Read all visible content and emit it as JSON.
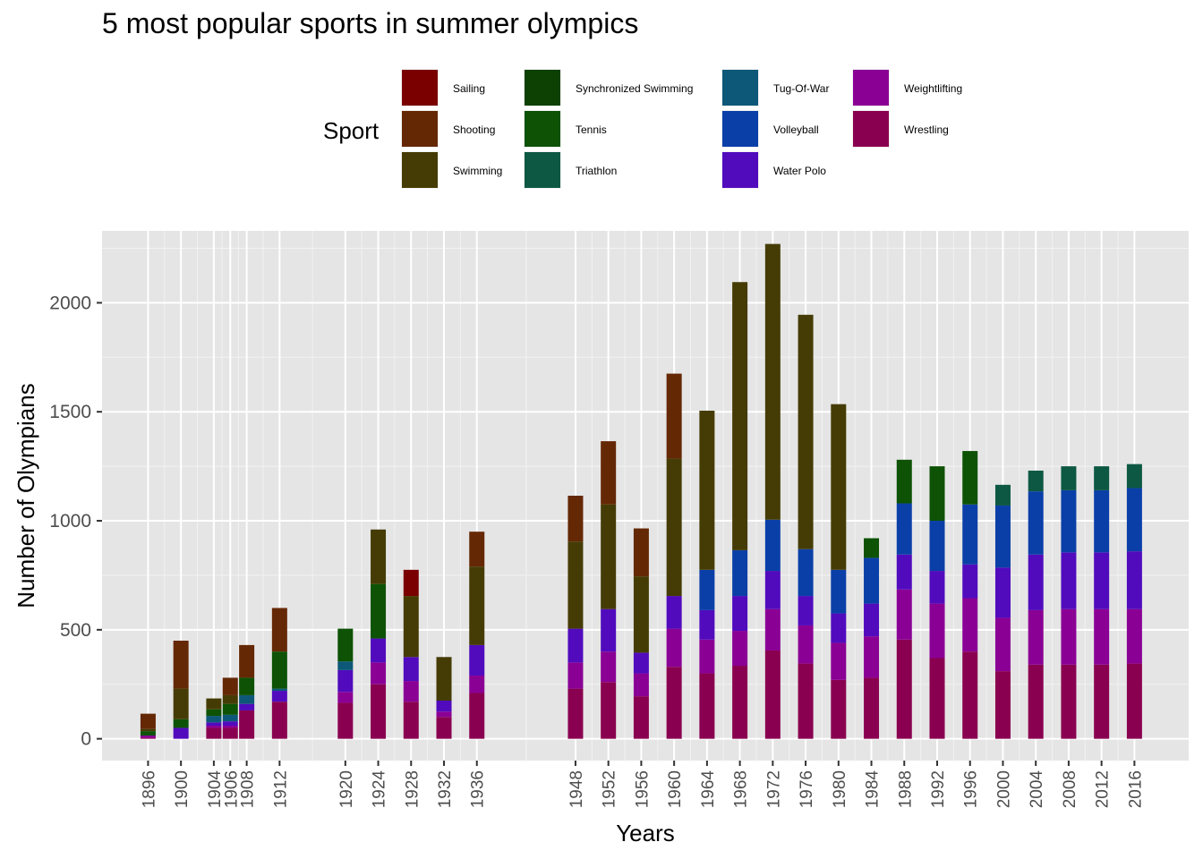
{
  "chart_data": {
    "type": "bar",
    "stacked": true,
    "title": "5 most popular sports in summer olympics",
    "xlabel": "Years",
    "ylabel": "Number of Olympians",
    "ylim": [
      -100,
      2330
    ],
    "xlim": [
      1890.4,
      2022.6
    ],
    "yticks": [
      0,
      500,
      1000,
      1500,
      2000
    ],
    "xticks": [
      1896,
      1900,
      1904,
      1906,
      1908,
      1912,
      1920,
      1924,
      1928,
      1932,
      1936,
      1948,
      1952,
      1956,
      1960,
      1964,
      1968,
      1972,
      1976,
      1980,
      1984,
      1988,
      1992,
      1996,
      2000,
      2004,
      2008,
      2012,
      2016
    ],
    "legend_title": "Sport",
    "legend_position": "top",
    "grid": true,
    "stack_order": [
      "Wrestling",
      "Weightlifting",
      "Water Polo",
      "Volleyball",
      "Tug-Of-War",
      "Triathlon",
      "Tennis",
      "Synchronized Swimming",
      "Swimming",
      "Shooting",
      "Sailing"
    ],
    "series": [
      {
        "name": "Sailing",
        "color": "#7a0000",
        "values": [
          [
            1928,
            120
          ]
        ]
      },
      {
        "name": "Shooting",
        "color": "#652805",
        "values": [
          [
            1896,
            70
          ],
          [
            1900,
            220
          ],
          [
            1904,
            0
          ],
          [
            1906,
            80
          ],
          [
            1908,
            150
          ],
          [
            1912,
            200
          ],
          [
            1920,
            0
          ],
          [
            1924,
            0
          ],
          [
            1928,
            0
          ],
          [
            1932,
            0
          ],
          [
            1936,
            160
          ],
          [
            1948,
            210
          ],
          [
            1952,
            290
          ],
          [
            1956,
            220
          ],
          [
            1960,
            390
          ]
        ]
      },
      {
        "name": "Swimming",
        "color": "#453c05",
        "values": [
          [
            1896,
            10
          ],
          [
            1900,
            140
          ],
          [
            1904,
            50
          ],
          [
            1906,
            40
          ],
          [
            1908,
            0
          ],
          [
            1912,
            0
          ],
          [
            1920,
            0
          ],
          [
            1924,
            250
          ],
          [
            1928,
            280
          ],
          [
            1932,
            200
          ],
          [
            1936,
            360
          ],
          [
            1948,
            400
          ],
          [
            1952,
            480
          ],
          [
            1956,
            350
          ],
          [
            1960,
            630
          ],
          [
            1964,
            730
          ],
          [
            1968,
            1230
          ],
          [
            1972,
            1265
          ],
          [
            1976,
            1075
          ],
          [
            1980,
            760
          ]
        ]
      },
      {
        "name": "Synchronized Swimming",
        "color": "#0d4103",
        "values": []
      },
      {
        "name": "Tennis",
        "color": "#0d5205",
        "values": [
          [
            1896,
            20
          ],
          [
            1900,
            40
          ],
          [
            1904,
            30
          ],
          [
            1906,
            50
          ],
          [
            1908,
            80
          ],
          [
            1912,
            170
          ],
          [
            1920,
            150
          ],
          [
            1924,
            250
          ],
          [
            1988,
            200
          ],
          [
            1992,
            250
          ],
          [
            1996,
            245
          ],
          [
            1984,
            90
          ]
        ]
      },
      {
        "name": "Triathlon",
        "color": "#0d5843",
        "values": [
          [
            2000,
            95
          ],
          [
            2004,
            95
          ],
          [
            2008,
            110
          ],
          [
            2012,
            110
          ],
          [
            2016,
            110
          ]
        ]
      },
      {
        "name": "Tug-Of-War",
        "color": "#0d5878",
        "values": [
          [
            1900,
            0
          ],
          [
            1904,
            30
          ],
          [
            1906,
            30
          ],
          [
            1908,
            40
          ],
          [
            1912,
            10
          ],
          [
            1920,
            40
          ]
        ]
      },
      {
        "name": "Volleyball",
        "color": "#0b3fa8",
        "values": [
          [
            1964,
            185
          ],
          [
            1968,
            210
          ],
          [
            1972,
            235
          ],
          [
            1976,
            215
          ],
          [
            1980,
            200
          ],
          [
            1984,
            210
          ],
          [
            1988,
            235
          ],
          [
            1992,
            230
          ],
          [
            1996,
            275
          ],
          [
            2000,
            285
          ],
          [
            2004,
            290
          ],
          [
            2008,
            285
          ],
          [
            2012,
            285
          ],
          [
            2016,
            290
          ]
        ]
      },
      {
        "name": "Water Polo",
        "color": "#510bbd",
        "values": [
          [
            1896,
            0
          ],
          [
            1900,
            50
          ],
          [
            1904,
            15
          ],
          [
            1906,
            20
          ],
          [
            1908,
            30
          ],
          [
            1912,
            50
          ],
          [
            1920,
            100
          ],
          [
            1924,
            110
          ],
          [
            1928,
            110
          ],
          [
            1932,
            50
          ],
          [
            1936,
            140
          ],
          [
            1948,
            155
          ],
          [
            1952,
            195
          ],
          [
            1956,
            95
          ],
          [
            1960,
            150
          ],
          [
            1964,
            135
          ],
          [
            1968,
            160
          ],
          [
            1972,
            175
          ],
          [
            1976,
            135
          ],
          [
            1980,
            135
          ],
          [
            1984,
            150
          ],
          [
            1988,
            160
          ],
          [
            1992,
            150
          ],
          [
            1996,
            155
          ],
          [
            2000,
            230
          ],
          [
            2004,
            255
          ],
          [
            2008,
            260
          ],
          [
            2012,
            260
          ],
          [
            2016,
            265
          ]
        ]
      },
      {
        "name": "Weightlifting",
        "color": "#8a0095",
        "values": [
          [
            1896,
            10
          ],
          [
            1900,
            0
          ],
          [
            1904,
            10
          ],
          [
            1906,
            10
          ],
          [
            1908,
            0
          ],
          [
            1912,
            0
          ],
          [
            1920,
            50
          ],
          [
            1924,
            100
          ],
          [
            1928,
            95
          ],
          [
            1932,
            25
          ],
          [
            1936,
            80
          ],
          [
            1948,
            120
          ],
          [
            1952,
            140
          ],
          [
            1956,
            105
          ],
          [
            1960,
            175
          ],
          [
            1964,
            155
          ],
          [
            1968,
            160
          ],
          [
            1972,
            190
          ],
          [
            1976,
            175
          ],
          [
            1980,
            170
          ],
          [
            1984,
            190
          ],
          [
            1988,
            230
          ],
          [
            1992,
            250
          ],
          [
            1996,
            245
          ],
          [
            2000,
            245
          ],
          [
            2004,
            250
          ],
          [
            2008,
            255
          ],
          [
            2012,
            255
          ],
          [
            2016,
            250
          ]
        ]
      },
      {
        "name": "Wrestling",
        "color": "#8a0050",
        "values": [
          [
            1896,
            5
          ],
          [
            1900,
            0
          ],
          [
            1904,
            50
          ],
          [
            1906,
            50
          ],
          [
            1908,
            130
          ],
          [
            1912,
            170
          ],
          [
            1920,
            165
          ],
          [
            1924,
            250
          ],
          [
            1928,
            170
          ],
          [
            1932,
            100
          ],
          [
            1936,
            210
          ],
          [
            1948,
            230
          ],
          [
            1952,
            260
          ],
          [
            1956,
            195
          ],
          [
            1960,
            330
          ],
          [
            1964,
            300
          ],
          [
            1968,
            335
          ],
          [
            1972,
            405
          ],
          [
            1976,
            345
          ],
          [
            1980,
            270
          ],
          [
            1984,
            280
          ],
          [
            1988,
            455
          ],
          [
            1992,
            370
          ],
          [
            1996,
            400
          ],
          [
            2000,
            310
          ],
          [
            2004,
            340
          ],
          [
            2008,
            340
          ],
          [
            2012,
            340
          ],
          [
            2016,
            345
          ]
        ]
      }
    ]
  }
}
